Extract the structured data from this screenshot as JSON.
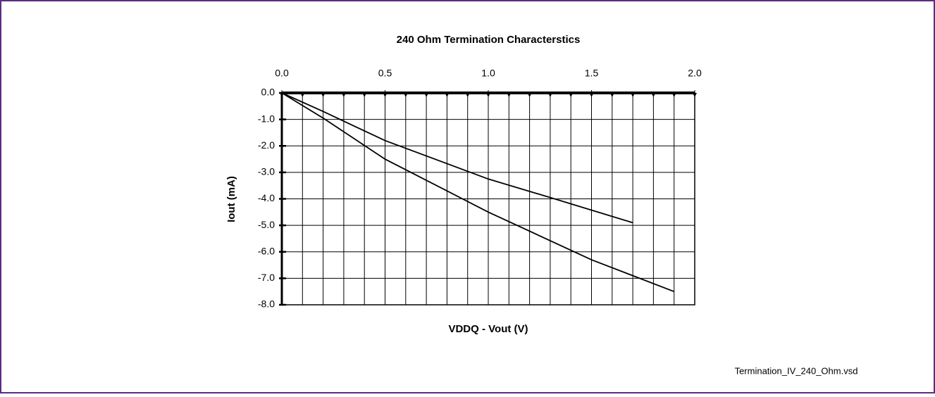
{
  "chart_data": {
    "type": "line",
    "title": "240 Ohm Termination Characterstics",
    "x_label": "VDDQ - Vout (V)",
    "y_label": "Iout (mA)",
    "note": "Termination_IV_240_Ohm.vsd",
    "xlim": [
      0,
      2
    ],
    "ylim": [
      -8,
      0
    ],
    "xticks": [
      {
        "value": 0,
        "label": "0.0"
      },
      {
        "value": 0.5,
        "label": "0.5"
      },
      {
        "value": 1,
        "label": "1.0"
      },
      {
        "value": 1.5,
        "label": "1.5"
      },
      {
        "value": 2,
        "label": "2.0"
      }
    ],
    "xminor_ticks": [
      0,
      0.1,
      0.2,
      0.3,
      0.4,
      0.5,
      0.6,
      0.7,
      0.8,
      0.9,
      1,
      1.1,
      1.2,
      1.3,
      1.4,
      1.5,
      1.6,
      1.7,
      1.8,
      1.9,
      2
    ],
    "yticks": [
      {
        "value": 0,
        "label": "0.0"
      },
      {
        "value": -1,
        "label": "-1.0"
      },
      {
        "value": -2,
        "label": "-2.0"
      },
      {
        "value": -3,
        "label": "-3.0"
      },
      {
        "value": -4,
        "label": "-4.0"
      },
      {
        "value": -5,
        "label": "-5.0"
      },
      {
        "value": -6,
        "label": "-6.0"
      },
      {
        "value": -7,
        "label": "-7.0"
      },
      {
        "value": -8,
        "label": "-8.0"
      }
    ],
    "grid": true,
    "x_axis_position": "top",
    "series": [
      {
        "color": "#000000",
        "x": [
          0,
          0.2,
          0.5,
          1,
          1.3,
          1.7
        ],
        "values": [
          0,
          -0.7,
          -1.8,
          -3.25,
          -3.95,
          -4.9
        ]
      },
      {
        "color": "#000000",
        "x": [
          0,
          0.2,
          0.5,
          1,
          1.5,
          1.9
        ],
        "values": [
          0,
          -0.95,
          -2.5,
          -4.5,
          -6.3,
          -7.5
        ]
      }
    ]
  }
}
